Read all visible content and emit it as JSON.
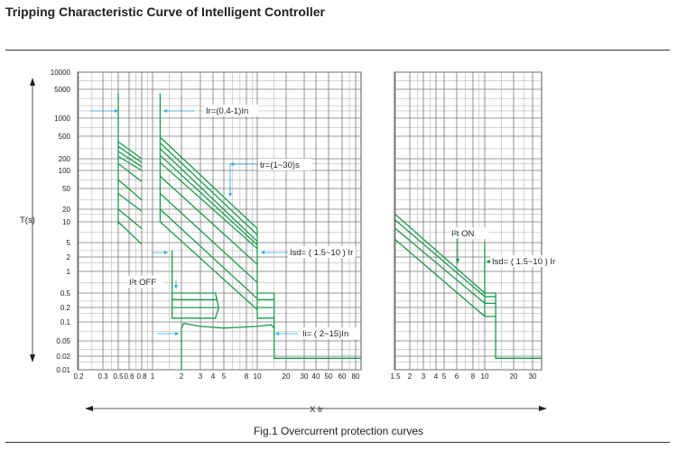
{
  "title": "Tripping Characteristic Curve of Intelligent Controller",
  "caption": "Fig.1 Overcurrent protection curves",
  "colors": {
    "curve": "#1a9a4a",
    "arrow": "#29a9e0",
    "grid": "#888888"
  },
  "chart_data": [
    {
      "type": "line",
      "name": "left-panel",
      "ylabel": "T(s)",
      "xlabel": "X Ir",
      "y_ticks": [
        "10000",
        "5000",
        "1000",
        "500",
        "200",
        "100",
        "50",
        "20",
        "10",
        "5",
        "2",
        "1",
        "0.5",
        "0.2",
        "0.1",
        "0.05",
        "0.02",
        "0.01"
      ],
      "x_ticks": [
        "0.2",
        "0.3",
        "0.5",
        "0.6",
        "0.8",
        "1",
        "2",
        "3",
        "4",
        "5",
        "8",
        "10",
        "20",
        "30",
        "40",
        "50",
        "60",
        "80"
      ],
      "annotations": [
        "Ir=(0.4-1)In",
        "tr=(1~30)s",
        "Isd= ( 1.5~10 ) Ir",
        "I²t OFF",
        "Ii= ( 2~15)In"
      ],
      "xlim": [
        0.2,
        90
      ],
      "ylim": [
        0.01,
        10000
      ],
      "series": [
        {
          "name": "ir-min-vertical",
          "points": [
            [
              0.5,
              4000
            ],
            [
              0.5,
              9
            ]
          ]
        },
        {
          "name": "ir-min-bands",
          "segments": [
            [
              [
                0.5,
                400
              ],
              [
                0.8,
                200
              ]
            ],
            [
              [
                0.5,
                330
              ],
              [
                0.8,
                160
              ]
            ],
            [
              [
                0.5,
                270
              ],
              [
                0.8,
                125
              ]
            ],
            [
              [
                0.5,
                220
              ],
              [
                0.8,
                100
              ]
            ],
            [
              [
                0.5,
                150
              ],
              [
                0.8,
                65
              ]
            ],
            [
              [
                0.5,
                70
              ],
              [
                0.8,
                30
              ]
            ],
            [
              [
                0.5,
                40
              ],
              [
                0.8,
                18
              ]
            ],
            [
              [
                0.5,
                20
              ],
              [
                0.8,
                8
              ]
            ],
            [
              [
                0.5,
                10
              ],
              [
                0.8,
                4.5
              ]
            ]
          ]
        },
        {
          "name": "ir-max-vertical",
          "points": [
            [
              1.2,
              4000
            ],
            [
              1.2,
              10
            ]
          ]
        },
        {
          "name": "tr-bands",
          "segments": [
            [
              [
                1.2,
                480
              ],
              [
                10,
                8
              ]
            ],
            [
              [
                1.2,
                380
              ],
              [
                10,
                6.5
              ]
            ],
            [
              [
                1.2,
                300
              ],
              [
                10,
                5.2
              ]
            ],
            [
              [
                1.2,
                230
              ],
              [
                10,
                4.3
              ]
            ],
            [
              [
                1.2,
                160
              ],
              [
                10,
                3.4
              ]
            ],
            [
              [
                1.2,
                80
              ],
              [
                10,
                1.4
              ]
            ],
            [
              [
                1.2,
                40
              ],
              [
                10,
                0.7
              ]
            ],
            [
              [
                1.2,
                20
              ],
              [
                10,
                0.35
              ]
            ],
            [
              [
                1.2,
                10
              ],
              [
                10,
                0.18
              ]
            ]
          ]
        },
        {
          "name": "isd-max",
          "points": [
            [
              10,
              8
            ],
            [
              10,
              0.12
            ],
            [
              15,
              0.12
            ],
            [
              15,
              0.018
            ],
            [
              90,
              0.018
            ]
          ]
        },
        {
          "name": "isd-max-steps",
          "segments": [
            [
              [
                10,
                0.5
              ],
              [
                15,
                0.5
              ]
            ],
            [
              [
                10,
                0.33
              ],
              [
                15,
                0.33
              ]
            ],
            [
              [
                10,
                0.2
              ],
              [
                15,
                0.2
              ]
            ],
            [
              [
                15,
                0.5
              ],
              [
                15,
                0.12
              ]
            ]
          ]
        },
        {
          "name": "isd-min",
          "points": [
            [
              1.6,
              3
            ],
            [
              1.6,
              0.12
            ],
            [
              4.2,
              0.12
            ],
            [
              4.5,
              0.2
            ],
            [
              4.2,
              0.5
            ],
            [
              1.6,
              0.5
            ]
          ]
        },
        {
          "name": "isd-min-steps",
          "segments": [
            [
              [
                1.6,
                0.33
              ],
              [
                4.4,
                0.33
              ]
            ],
            [
              [
                1.6,
                0.2
              ],
              [
                4.5,
                0.2
              ]
            ]
          ]
        },
        {
          "name": "ii",
          "points": [
            [
              2,
              0.01
            ],
            [
              2,
              0.08
            ],
            [
              2.1,
              0.095
            ],
            [
              3,
              0.085
            ],
            [
              5,
              0.08
            ],
            [
              10,
              0.085
            ],
            [
              14,
              0.09
            ],
            [
              15,
              0.08
            ]
          ]
        }
      ]
    },
    {
      "type": "line",
      "name": "right-panel",
      "x_ticks": [
        "1.5",
        "2",
        "3",
        "4",
        "5",
        "6",
        "8",
        "10",
        "20",
        "30"
      ],
      "annotations": [
        "I²t ON",
        "Isd= ( 1.5~10 ) Ir"
      ],
      "xlim": [
        1.5,
        35
      ],
      "ylim": [
        0.01,
        10000
      ],
      "series": [
        {
          "name": "i2t-bands",
          "segments": [
            [
              [
                1.5,
                15
              ],
              [
                10,
                0.5
              ]
            ],
            [
              [
                1.5,
                11
              ],
              [
                10,
                0.4
              ]
            ],
            [
              [
                1.5,
                8
              ],
              [
                10,
                0.26
              ]
            ],
            [
              [
                1.5,
                5.5
              ],
              [
                10,
                0.13
              ]
            ]
          ]
        },
        {
          "name": "isd",
          "points": [
            [
              10,
              5
            ],
            [
              10,
              0.13
            ],
            [
              13,
              0.13
            ],
            [
              13,
              0.018
            ],
            [
              35,
              0.018
            ]
          ]
        },
        {
          "name": "isd-steps",
          "segments": [
            [
              [
                10,
                0.5
              ],
              [
                13,
                0.5
              ]
            ],
            [
              [
                10,
                0.4
              ],
              [
                13,
                0.4
              ]
            ],
            [
              [
                10,
                0.26
              ],
              [
                13,
                0.26
              ]
            ],
            [
              [
                13,
                0.5
              ],
              [
                13,
                0.13
              ]
            ]
          ]
        }
      ]
    }
  ]
}
